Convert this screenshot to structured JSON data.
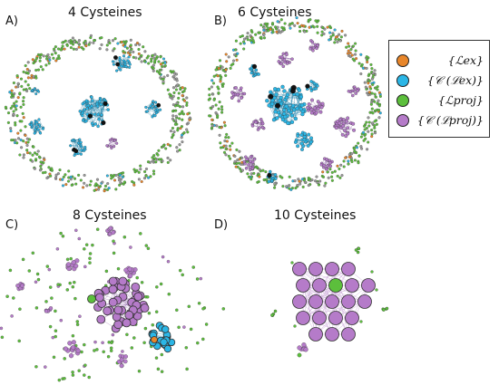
{
  "panels": [
    {
      "id": "A",
      "label": "A)",
      "title": "4 Cysteines"
    },
    {
      "id": "B",
      "label": "B)",
      "title": "6 Cysteines"
    },
    {
      "id": "C",
      "label": "C)",
      "title": "8 Cysteines"
    },
    {
      "id": "D",
      "label": "D)",
      "title": "10 Cysteines"
    }
  ],
  "legend": {
    "items": [
      {
        "label": "{ℒex}",
        "color": "#e8862a"
      },
      {
        "label": "{𝒞 (ℒex)}",
        "color": "#2bb6e6"
      },
      {
        "label": "{ℒproj}",
        "color": "#5cbf3c"
      },
      {
        "label": "{𝒞 (ℒproj)}",
        "color": "#b57bc9"
      }
    ]
  },
  "colors": {
    "orange": "#e8862a",
    "blue": "#2bb6e6",
    "green": "#5cbf3c",
    "purple": "#b57bc9",
    "gray": "#9a9a9a",
    "black": "#111111"
  }
}
